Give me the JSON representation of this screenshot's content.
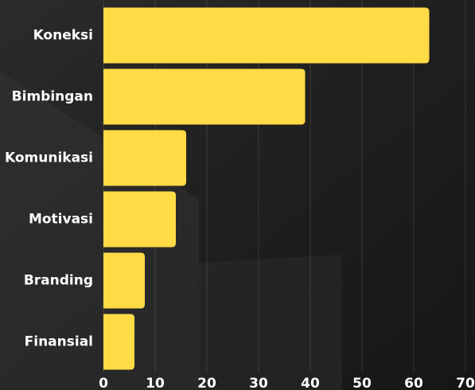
{
  "chart_data": {
    "type": "bar",
    "orientation": "horizontal",
    "categories": [
      "Koneksi",
      "Bimbingan",
      "Komunikasi",
      "Motivasi",
      "Branding",
      "Finansial"
    ],
    "values": [
      63,
      39,
      16,
      14,
      8,
      6
    ],
    "color": "#ffdb45",
    "xlim": [
      0,
      70
    ],
    "xticks": [
      0,
      10,
      20,
      30,
      40,
      50,
      60,
      70
    ],
    "grid": true
  }
}
